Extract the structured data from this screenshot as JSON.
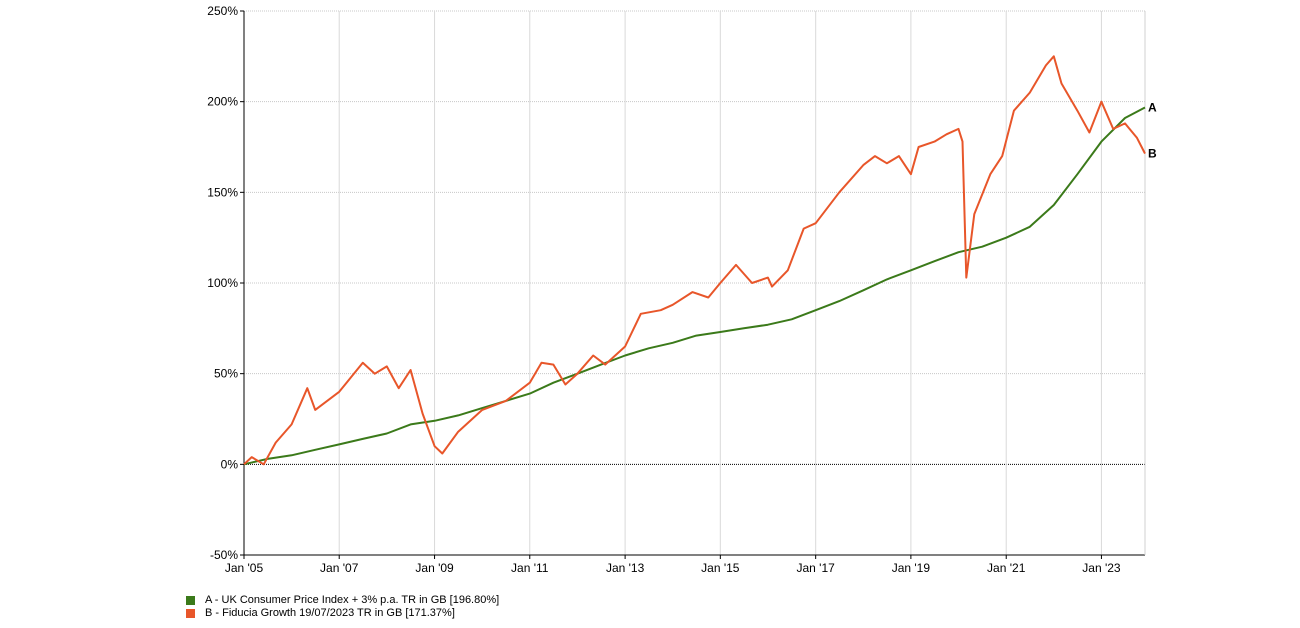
{
  "chart_data": {
    "type": "line",
    "title": "",
    "xlabel": "",
    "ylabel": "",
    "ylim": [
      -50,
      250
    ],
    "xlim": [
      "2005-01-01",
      "2023-12-01"
    ],
    "grid": true,
    "y_ticks": [
      "-50%",
      "0%",
      "50%",
      "100%",
      "150%",
      "200%",
      "250%"
    ],
    "x_ticks": [
      "Jan '05",
      "Jan '07",
      "Jan '09",
      "Jan '11",
      "Jan '13",
      "Jan '15",
      "Jan '17",
      "Jan '19",
      "Jan '21",
      "Jan '23"
    ],
    "legend_position": "bottom-left",
    "series": [
      {
        "key": "A",
        "name": "A - UK Consumer Price Index + 3% p.a. TR in GB [196.80%]",
        "color": "#3b7a1a",
        "points": [
          [
            "2005-01-01",
            0
          ],
          [
            "2005-07-01",
            3
          ],
          [
            "2006-01-01",
            5
          ],
          [
            "2006-07-01",
            8
          ],
          [
            "2007-01-01",
            11
          ],
          [
            "2007-07-01",
            14
          ],
          [
            "2008-01-01",
            17
          ],
          [
            "2008-07-01",
            22
          ],
          [
            "2009-01-01",
            24
          ],
          [
            "2009-07-01",
            27
          ],
          [
            "2010-01-01",
            31
          ],
          [
            "2010-07-01",
            35
          ],
          [
            "2011-01-01",
            39
          ],
          [
            "2011-07-01",
            45
          ],
          [
            "2012-01-01",
            50
          ],
          [
            "2012-07-01",
            55
          ],
          [
            "2013-01-01",
            60
          ],
          [
            "2013-07-01",
            64
          ],
          [
            "2014-01-01",
            67
          ],
          [
            "2014-07-01",
            71
          ],
          [
            "2015-01-01",
            73
          ],
          [
            "2015-07-01",
            75
          ],
          [
            "2016-01-01",
            77
          ],
          [
            "2016-07-01",
            80
          ],
          [
            "2017-01-01",
            85
          ],
          [
            "2017-07-01",
            90
          ],
          [
            "2018-01-01",
            96
          ],
          [
            "2018-07-01",
            102
          ],
          [
            "2019-01-01",
            107
          ],
          [
            "2019-07-01",
            112
          ],
          [
            "2020-01-01",
            117
          ],
          [
            "2020-07-01",
            120
          ],
          [
            "2021-01-01",
            125
          ],
          [
            "2021-07-01",
            131
          ],
          [
            "2022-01-01",
            143
          ],
          [
            "2022-07-01",
            160
          ],
          [
            "2023-01-01",
            178
          ],
          [
            "2023-07-01",
            191
          ],
          [
            "2023-12-01",
            196.8
          ]
        ]
      },
      {
        "key": "B",
        "name": "B - Fiducia Growth 19/07/2023 TR in GB [171.37%]",
        "color": "#e8562a",
        "points": [
          [
            "2005-01-01",
            0
          ],
          [
            "2005-03-01",
            4
          ],
          [
            "2005-06-01",
            0
          ],
          [
            "2005-09-01",
            12
          ],
          [
            "2006-01-01",
            22
          ],
          [
            "2006-05-01",
            42
          ],
          [
            "2006-07-01",
            30
          ],
          [
            "2007-01-01",
            40
          ],
          [
            "2007-04-01",
            48
          ],
          [
            "2007-07-01",
            56
          ],
          [
            "2007-10-01",
            50
          ],
          [
            "2008-01-01",
            54
          ],
          [
            "2008-04-01",
            42
          ],
          [
            "2008-07-01",
            52
          ],
          [
            "2008-10-01",
            28
          ],
          [
            "2009-01-01",
            10
          ],
          [
            "2009-03-01",
            6
          ],
          [
            "2009-07-01",
            18
          ],
          [
            "2010-01-01",
            30
          ],
          [
            "2010-07-01",
            35
          ],
          [
            "2011-01-01",
            45
          ],
          [
            "2011-04-01",
            56
          ],
          [
            "2011-07-01",
            55
          ],
          [
            "2011-10-01",
            44
          ],
          [
            "2012-01-01",
            50
          ],
          [
            "2012-05-01",
            60
          ],
          [
            "2012-08-01",
            55
          ],
          [
            "2013-01-01",
            65
          ],
          [
            "2013-05-01",
            83
          ],
          [
            "2013-10-01",
            85
          ],
          [
            "2014-01-01",
            88
          ],
          [
            "2014-06-01",
            95
          ],
          [
            "2014-10-01",
            92
          ],
          [
            "2015-01-01",
            100
          ],
          [
            "2015-05-01",
            110
          ],
          [
            "2015-09-01",
            100
          ],
          [
            "2016-01-01",
            103
          ],
          [
            "2016-02-01",
            98
          ],
          [
            "2016-06-01",
            107
          ],
          [
            "2016-10-01",
            130
          ],
          [
            "2017-01-01",
            133
          ],
          [
            "2017-07-01",
            150
          ],
          [
            "2018-01-01",
            165
          ],
          [
            "2018-04-01",
            170
          ],
          [
            "2018-07-01",
            166
          ],
          [
            "2018-10-01",
            170
          ],
          [
            "2019-01-01",
            160
          ],
          [
            "2019-03-01",
            175
          ],
          [
            "2019-07-01",
            178
          ],
          [
            "2019-10-01",
            182
          ],
          [
            "2020-01-01",
            185
          ],
          [
            "2020-02-01",
            178
          ],
          [
            "2020-03-01",
            103
          ],
          [
            "2020-05-01",
            138
          ],
          [
            "2020-09-01",
            160
          ],
          [
            "2020-12-01",
            170
          ],
          [
            "2021-03-01",
            195
          ],
          [
            "2021-07-01",
            205
          ],
          [
            "2021-11-01",
            220
          ],
          [
            "2022-01-01",
            225
          ],
          [
            "2022-03-01",
            210
          ],
          [
            "2022-07-01",
            195
          ],
          [
            "2022-10-01",
            183
          ],
          [
            "2023-01-01",
            200
          ],
          [
            "2023-04-01",
            185
          ],
          [
            "2023-07-01",
            188
          ],
          [
            "2023-10-01",
            180
          ],
          [
            "2023-12-01",
            171.37
          ]
        ]
      }
    ]
  }
}
